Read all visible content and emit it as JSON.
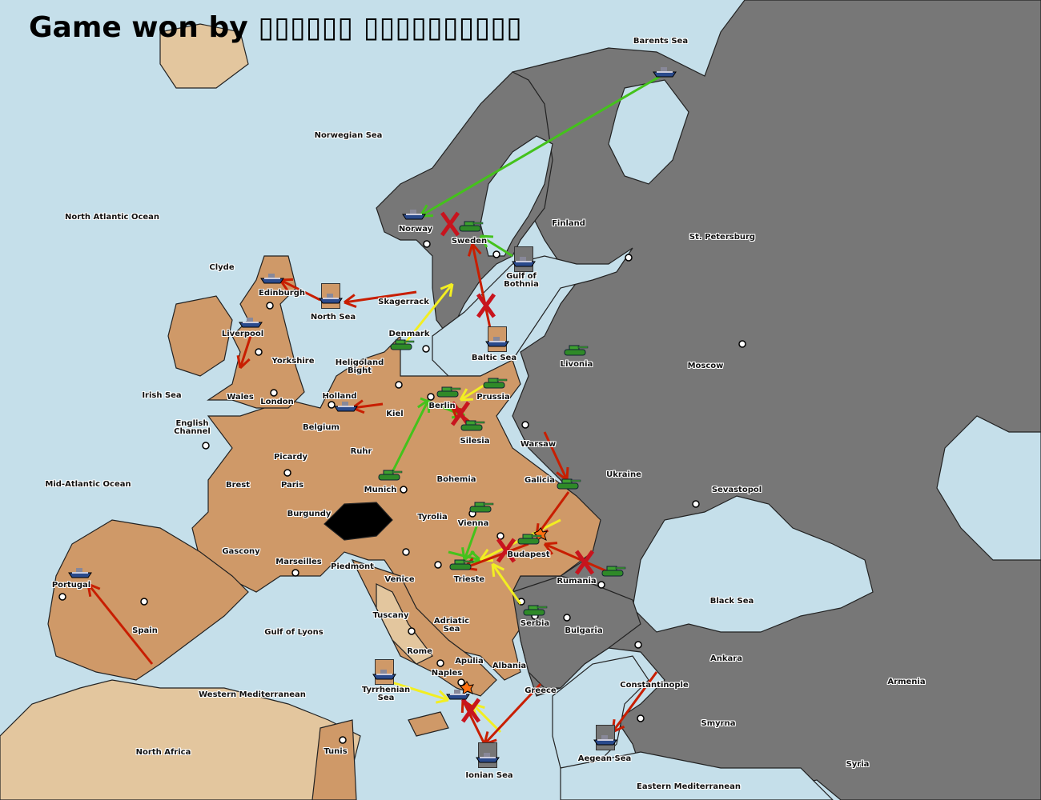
{
  "title": {
    "prefix": "Game won by",
    "winner": "▯▯▯▯▯▯ ▯▯▯▯▯▯▯▯▯▯"
  },
  "colors": {
    "sea": "#c5dfea",
    "power_tan": "#cf9968",
    "power_grey": "#777777",
    "neutral": "#e3c69e",
    "order_move": "#c81e00",
    "order_support": "#44c21c",
    "order_convoy": "#f2ee22",
    "impassable": "#000000"
  },
  "territories": [
    "Barents Sea",
    "Norwegian Sea",
    "North Atlantic Ocean",
    "Finland",
    "St. Petersburg",
    "Norway",
    "Sweden",
    "Gulf of Bothnia",
    "Clyde",
    "Edinburgh",
    "North Sea",
    "Skagerrack",
    "Denmark",
    "Baltic Sea",
    "Livonia",
    "Moscow",
    "Liverpool",
    "Yorkshire",
    "Heligoland Bight",
    "Irish Sea",
    "Wales",
    "London",
    "Holland",
    "Kiel",
    "Berlin",
    "Prussia",
    "English Channel",
    "Belgium",
    "Silesia",
    "Warsaw",
    "Ruhr",
    "Picardy",
    "Ukraine",
    "Mid-Atlantic Ocean",
    "Brest",
    "Paris",
    "Munich",
    "Bohemia",
    "Galicia",
    "Sevastopol",
    "Burgundy",
    "Tyrolia",
    "Vienna",
    "Gascony",
    "Budapest",
    "Marseilles",
    "Piedmont",
    "Venice",
    "Trieste",
    "Rumania",
    "Portugal",
    "Black Sea",
    "Tuscany",
    "Adriatic Sea",
    "Serbia",
    "Bulgaria",
    "Spain",
    "Gulf of Lyons",
    "Rome",
    "Apulia",
    "Ankara",
    "Albania",
    "Naples",
    "Constantinople",
    "Armenia",
    "Greece",
    "Western Mediterranean",
    "Tyrrhenian Sea",
    "Smyrna",
    "North Africa",
    "Tunis",
    "Aegean Sea",
    "Ionian Sea",
    "Syria",
    "Eastern Mediterranean"
  ],
  "units": [
    {
      "type": "fleet",
      "location": "Barents Sea",
      "color": "grey",
      "boxed": false
    },
    {
      "type": "fleet",
      "location": "Norway",
      "color": "grey",
      "boxed": false
    },
    {
      "type": "fleet",
      "location": "Gulf of Bothnia",
      "color": "grey",
      "boxed": true
    },
    {
      "type": "fleet",
      "location": "Edinburgh",
      "color": "tan",
      "boxed": false
    },
    {
      "type": "fleet",
      "location": "North Sea",
      "color": "tan",
      "boxed": true
    },
    {
      "type": "fleet",
      "location": "Liverpool",
      "color": "tan",
      "boxed": false
    },
    {
      "type": "fleet",
      "location": "Baltic Sea",
      "color": "tan",
      "boxed": true
    },
    {
      "type": "fleet",
      "location": "Holland",
      "color": "tan",
      "boxed": false
    },
    {
      "type": "fleet",
      "location": "Portugal",
      "color": "tan",
      "boxed": false
    },
    {
      "type": "fleet",
      "location": "Tyrrhenian Sea",
      "color": "tan",
      "boxed": true
    },
    {
      "type": "fleet",
      "location": "Naples",
      "color": "tan",
      "boxed": false
    },
    {
      "type": "fleet",
      "location": "Ionian Sea",
      "color": "grey",
      "boxed": true
    },
    {
      "type": "fleet",
      "location": "Aegean Sea",
      "color": "grey",
      "boxed": true
    },
    {
      "type": "army",
      "location": "Sweden",
      "color": "tan",
      "boxed": false
    },
    {
      "type": "army",
      "location": "Denmark",
      "color": "tan",
      "boxed": false
    },
    {
      "type": "army",
      "location": "Livonia",
      "color": "grey",
      "boxed": false
    },
    {
      "type": "army",
      "location": "Berlin",
      "color": "tan",
      "boxed": false
    },
    {
      "type": "army",
      "location": "Prussia",
      "color": "tan",
      "boxed": false
    },
    {
      "type": "army",
      "location": "Silesia",
      "color": "tan",
      "boxed": false
    },
    {
      "type": "army",
      "location": "Munich",
      "color": "tan",
      "boxed": false
    },
    {
      "type": "army",
      "location": "Galicia",
      "color": "tan",
      "boxed": false
    },
    {
      "type": "army",
      "location": "Vienna",
      "color": "tan",
      "boxed": false
    },
    {
      "type": "army",
      "location": "Budapest",
      "color": "tan",
      "boxed": false
    },
    {
      "type": "army",
      "location": "Trieste",
      "color": "tan",
      "boxed": false
    },
    {
      "type": "army",
      "location": "Rumania",
      "color": "tan",
      "boxed": false
    },
    {
      "type": "army",
      "location": "Serbia",
      "color": "tan",
      "boxed": false
    }
  ]
}
